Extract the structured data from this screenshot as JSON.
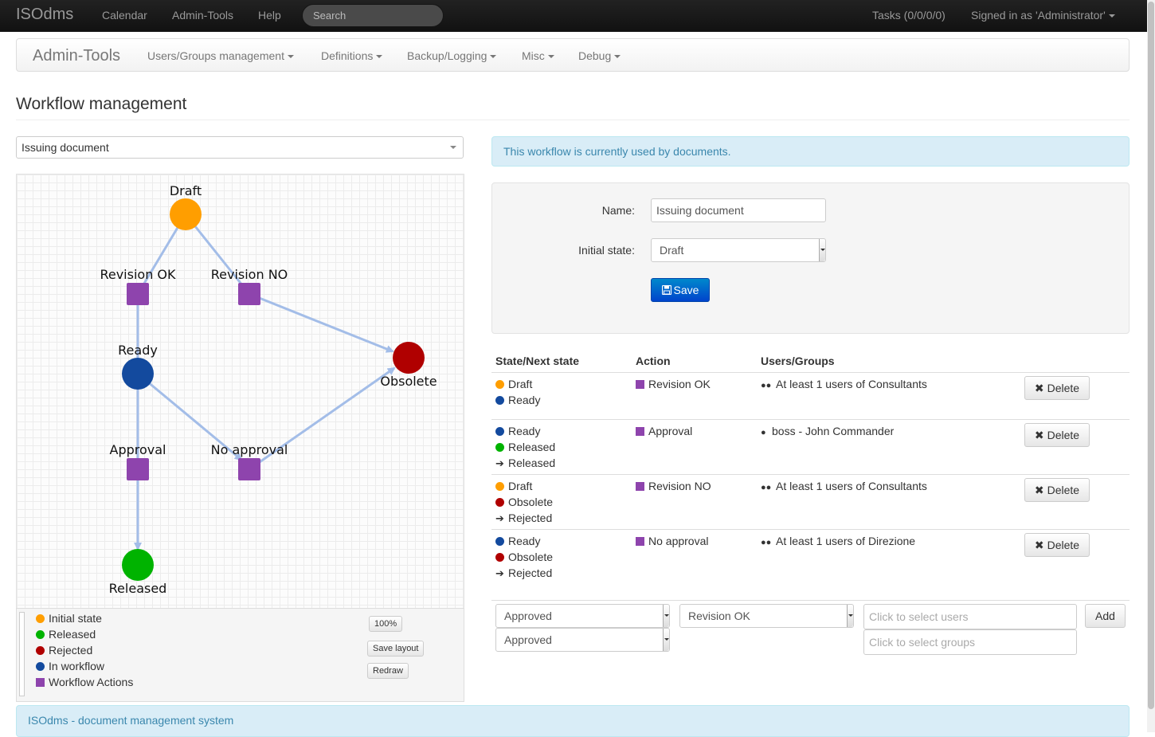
{
  "navbar": {
    "brand": "ISOdms",
    "links": [
      "Calendar",
      "Admin-Tools",
      "Help"
    ],
    "search_placeholder": "Search",
    "tasks": "Tasks (0/0/0/0)",
    "signed_in": "Signed in as 'Administrator'"
  },
  "subnav": {
    "brand": "Admin-Tools",
    "menus": [
      "Users/Groups management",
      "Definitions",
      "Backup/Logging",
      "Misc",
      "Debug"
    ]
  },
  "page_title": "Workflow management",
  "workflow_select": "Issuing document",
  "graph": {
    "nodes": [
      {
        "label": "Draft",
        "kind": "initial"
      },
      {
        "label": "Revision OK",
        "kind": "action"
      },
      {
        "label": "Revision NO",
        "kind": "action"
      },
      {
        "label": "Ready",
        "kind": "in_workflow"
      },
      {
        "label": "Obsolete",
        "kind": "rejected"
      },
      {
        "label": "Approval",
        "kind": "action"
      },
      {
        "label": "No approval",
        "kind": "action"
      },
      {
        "label": "Released",
        "kind": "released"
      }
    ],
    "colors": {
      "initial": "#ff9e00",
      "released": "#00b300",
      "rejected": "#b00000",
      "in_workflow": "#134a9e",
      "action": "#8e44ad",
      "edge": "#a3bde8"
    }
  },
  "legend": {
    "items": [
      {
        "label": "Initial state",
        "kind": "initial"
      },
      {
        "label": "Released",
        "kind": "released"
      },
      {
        "label": "Rejected",
        "kind": "rejected"
      },
      {
        "label": "In workflow",
        "kind": "in_workflow"
      },
      {
        "label": "Workflow Actions",
        "kind": "action"
      }
    ],
    "zoom_button": "100%",
    "save_layout_button": "Save layout",
    "redraw_button": "Redraw"
  },
  "info_alert": "This workflow is currently used by documents.",
  "form": {
    "name_label": "Name:",
    "name_value": "Issuing document",
    "initial_state_label": "Initial state:",
    "initial_state_value": "Draft",
    "save_button": "Save"
  },
  "table": {
    "headers": [
      "State/Next state",
      "Action",
      "Users/Groups"
    ],
    "rows": [
      {
        "state": "Draft",
        "state_kind": "initial",
        "next": "Ready",
        "next_kind": "in_workflow",
        "alt": "",
        "action": "Revision OK",
        "users": "At least 1 users of Consultants",
        "users_type": "group",
        "delete": "Delete"
      },
      {
        "state": "Ready",
        "state_kind": "in_workflow",
        "next": "Released",
        "next_kind": "released",
        "alt": "Released",
        "action": "Approval",
        "users": "boss - John Commander",
        "users_type": "user",
        "delete": "Delete"
      },
      {
        "state": "Draft",
        "state_kind": "initial",
        "next": "Obsolete",
        "next_kind": "rejected",
        "alt": "Rejected",
        "action": "Revision NO",
        "users": "At least 1 users of Consultants",
        "users_type": "group",
        "delete": "Delete"
      },
      {
        "state": "Ready",
        "state_kind": "in_workflow",
        "next": "Obsolete",
        "next_kind": "rejected",
        "alt": "Rejected",
        "action": "No approval",
        "users": "At least 1 users of Direzione",
        "users_type": "group",
        "delete": "Delete"
      }
    ]
  },
  "add_row": {
    "state_select": "Approved",
    "next_state_select": "Approved",
    "action_select": "Revision OK",
    "users_placeholder": "Click to select users",
    "groups_placeholder": "Click to select groups",
    "add_button": "Add"
  },
  "footer": "ISOdms - document management system"
}
